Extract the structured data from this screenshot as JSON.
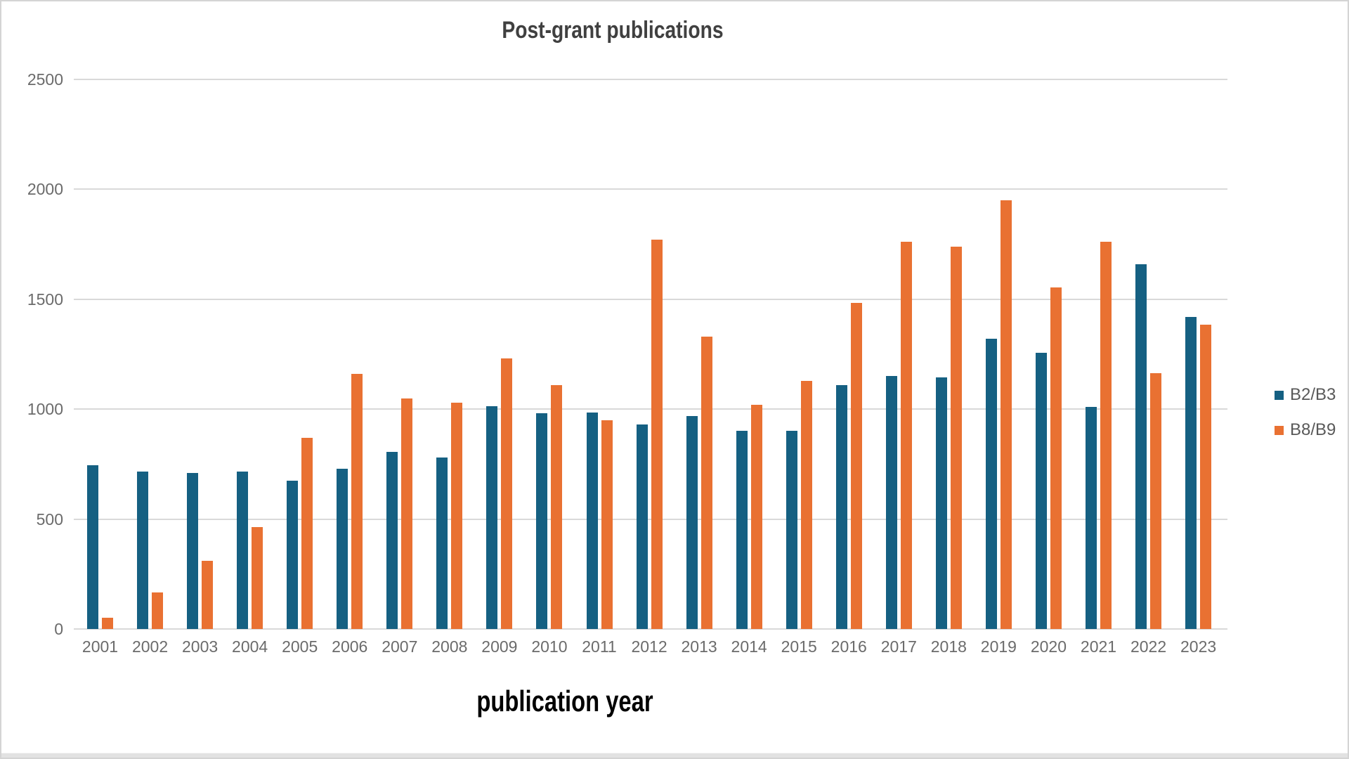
{
  "chart_data": {
    "type": "bar",
    "title": "Post-grant publications",
    "xlabel": "publication year",
    "ylabel": "",
    "ylim": [
      0,
      2500
    ],
    "yticks": [
      0,
      500,
      1000,
      1500,
      2000,
      2500
    ],
    "grid": true,
    "legend_position": "right",
    "categories": [
      "2001",
      "2002",
      "2003",
      "2004",
      "2005",
      "2006",
      "2007",
      "2008",
      "2009",
      "2010",
      "2011",
      "2012",
      "2013",
      "2014",
      "2015",
      "2016",
      "2017",
      "2018",
      "2019",
      "2020",
      "2021",
      "2022",
      "2023"
    ],
    "series": [
      {
        "name": "B2/B3",
        "color": "#156082",
        "values": [
          745,
          715,
          710,
          715,
          675,
          730,
          805,
          780,
          1015,
          980,
          985,
          930,
          970,
          900,
          900,
          1110,
          1150,
          1145,
          1320,
          1255,
          1010,
          1660,
          1420
        ]
      },
      {
        "name": "B8/B9",
        "color": "#E97132",
        "values": [
          50,
          165,
          310,
          465,
          870,
          1160,
          1050,
          1030,
          1230,
          1110,
          950,
          1770,
          1330,
          1020,
          1130,
          1485,
          1760,
          1740,
          1950,
          1555,
          1760,
          1165,
          1385
        ]
      }
    ]
  },
  "style_colors": {
    "gridline": "#d9d9d9",
    "axis_text": "#6b6b6b",
    "title_text": "#404040",
    "legend_text": "#595959"
  }
}
